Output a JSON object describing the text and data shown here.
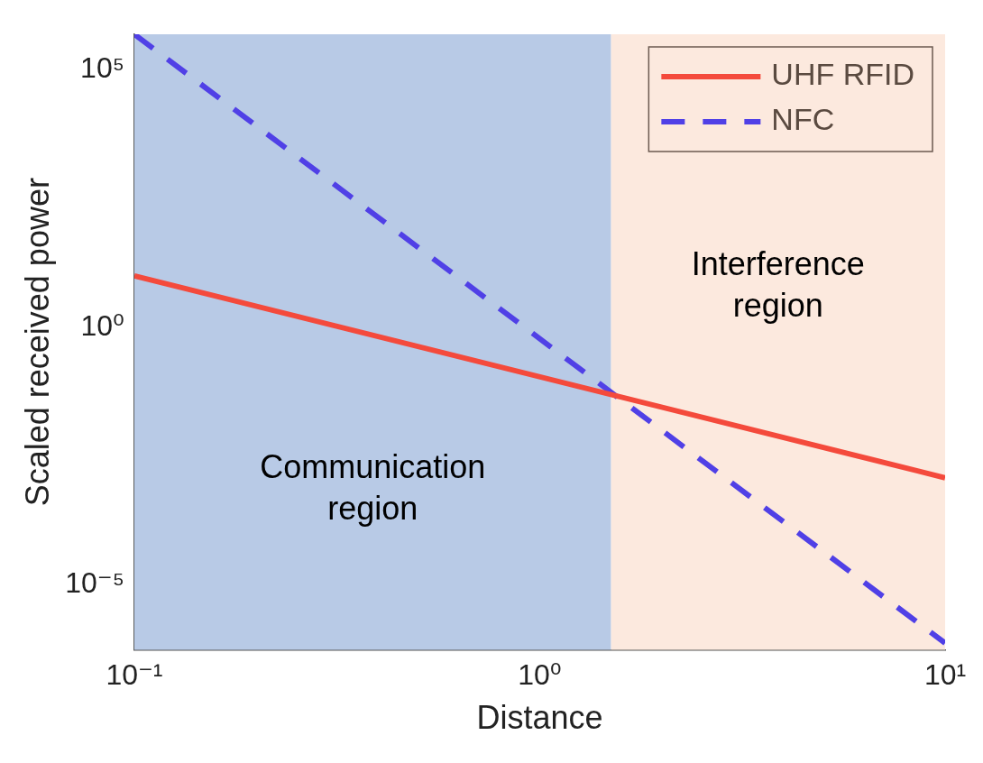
{
  "chart_data": {
    "type": "line",
    "xlabel": "Distance",
    "ylabel": "Scaled received power",
    "log": "xy",
    "xlim": [
      0.1,
      10
    ],
    "xticks": [
      {
        "value": 0.1,
        "label": "10⁻¹"
      },
      {
        "value": 1,
        "label": "10⁰"
      },
      {
        "value": 10,
        "label": "10¹"
      }
    ],
    "ylim": [
      5.5e-07,
      490000
    ],
    "yticks": [
      {
        "value": 1e-05,
        "label": "10⁻⁵"
      },
      {
        "value": 1,
        "label": "10⁰"
      },
      {
        "value": 100000,
        "label": "10⁵"
      }
    ],
    "x": [
      0.1,
      10
    ],
    "series": [
      {
        "name": "UHF RFID",
        "color": "#f44a3c",
        "values": [
          10,
          0.0012
        ],
        "line_style": "solid"
      },
      {
        "name": "NFC",
        "color": "#5040e6",
        "values": [
          490000,
          7.4e-07
        ],
        "line_style": "dashed"
      }
    ],
    "bands": [
      {
        "axis": "x",
        "from": 0.1,
        "to": 1.5,
        "label": "Communication region",
        "color": "#b8cae6"
      },
      {
        "axis": "x",
        "from": 1.5,
        "to": 10,
        "label": "Interference region",
        "color": "#fce9de"
      }
    ],
    "legend": "top right",
    "grid": false,
    "marker": "none"
  }
}
